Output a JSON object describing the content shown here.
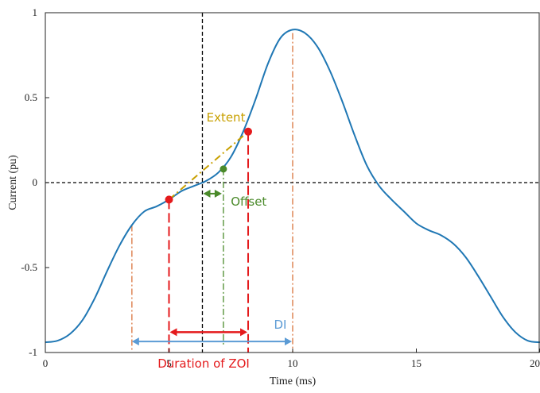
{
  "chart_data": {
    "type": "line",
    "title": "",
    "xlabel": "Time (ms)",
    "ylabel": "Current (pu)",
    "xlim": [
      0,
      20
    ],
    "ylim": [
      -1,
      1
    ],
    "x_ticks": [
      0,
      5,
      10,
      15,
      20
    ],
    "x_tick_labels": [
      "0",
      "5",
      "10",
      "15",
      "20"
    ],
    "y_ticks": [
      1,
      0.5,
      0,
      -0.5,
      -1
    ],
    "y_tick_labels": [
      "1",
      "0.5",
      "0",
      "-0.5",
      "-1"
    ],
    "grid": false,
    "legend": "none",
    "series": [
      {
        "color": "#1f77b4",
        "x": [
          0,
          0.5,
          1,
          1.5,
          2,
          2.5,
          3,
          3.5,
          4,
          4.5,
          5,
          5.5,
          6,
          6.5,
          7,
          7.5,
          8,
          8.5,
          9,
          9.5,
          10,
          10.5,
          11,
          11.5,
          12,
          12.5,
          13,
          13.5,
          14,
          14.5,
          15,
          15.5,
          16,
          16.5,
          17,
          17.5,
          18,
          18.5,
          19,
          19.5,
          20
        ],
        "y": [
          -0.94,
          -0.93,
          -0.89,
          -0.81,
          -0.68,
          -0.52,
          -0.37,
          -0.25,
          -0.17,
          -0.14,
          -0.1,
          -0.05,
          -0.02,
          0.01,
          0.06,
          0.15,
          0.3,
          0.49,
          0.7,
          0.85,
          0.9,
          0.88,
          0.8,
          0.66,
          0.48,
          0.28,
          0.1,
          -0.02,
          -0.1,
          -0.17,
          -0.24,
          -0.28,
          -0.31,
          -0.36,
          -0.44,
          -0.55,
          -0.67,
          -0.79,
          -0.88,
          -0.93,
          -0.94
        ]
      }
    ],
    "colors": {
      "curve": "#1f77b4",
      "extent": "#c8a000",
      "offset": "#4a8a2a",
      "zoi": "#e41a1c",
      "di": "#5b9bd5",
      "guide": "#d9733b",
      "reference": "#000000"
    },
    "points": [
      {
        "x": 5,
        "y": -0.1,
        "color": "#e41a1c"
      },
      {
        "x": 8.2,
        "y": 0.3,
        "color": "#e41a1c"
      },
      {
        "x": 7.2,
        "y": 0.08,
        "color": "#4a8a2a"
      }
    ],
    "reference_lines": {
      "vertical_dashed_x": 6.35,
      "horizontal_dashed_y": 0
    },
    "annotations": {
      "extent": {
        "text": "Extent",
        "line_from": [
          5,
          -0.1
        ],
        "line_to": [
          8.2,
          0.3
        ]
      },
      "offset": {
        "text": "Offset",
        "from_x": 6.35,
        "to_x": 7.2,
        "marker_x": 7.2
      },
      "zoi": {
        "text": "Duration of ZOI",
        "from_x": 5,
        "to_x": 8.2
      },
      "di": {
        "text": "DI",
        "from_x": 3.5,
        "to_x": 10
      },
      "guides_x": [
        3.5,
        10
      ]
    }
  }
}
